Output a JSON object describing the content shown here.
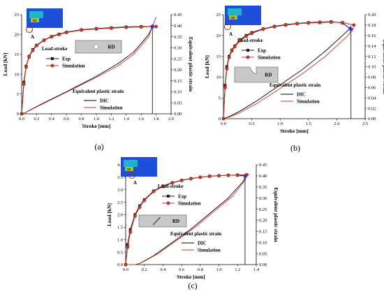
{
  "chart_data": [
    {
      "type": "line",
      "panel_label": "(a)",
      "xlabel": "Stroke [mm]",
      "ylabel": "Load [kN]",
      "y2label": "Equivalent plastic strain",
      "xlim": [
        0.0,
        2.0
      ],
      "ylim": [
        0,
        25
      ],
      "y2lim": [
        0.0,
        0.45
      ],
      "x_ticks": [
        "0.0",
        "0.2",
        "0.4",
        "0.6",
        "0.8",
        "1.0",
        "1.2",
        "1.4",
        "1.6",
        "1.8",
        "2.0"
      ],
      "y_ticks": [
        "0",
        "5",
        "10",
        "15",
        "20",
        "25"
      ],
      "y2_ticks": [
        "0.00",
        "0.05",
        "0.10",
        "0.15",
        "0.20",
        "0.25",
        "0.30",
        "0.35",
        "0.40",
        "0.45"
      ],
      "legend_load_title": "Load-stroke",
      "legend_strain_title": "Equivalent plastic strain",
      "inset_label": "RD",
      "point_label": "A",
      "series": [
        {
          "name": "Exp",
          "axis": "left",
          "x": [
            0.0,
            0.03,
            0.06,
            0.1,
            0.15,
            0.2,
            0.3,
            0.4,
            0.5,
            0.6,
            0.8,
            1.0,
            1.2,
            1.4,
            1.6,
            1.75
          ],
          "y": [
            0,
            8,
            12,
            14.5,
            16.2,
            17.3,
            18.6,
            19.5,
            20.1,
            20.6,
            21.2,
            21.5,
            21.7,
            21.9,
            22.0,
            22.0
          ]
        },
        {
          "name": "Simulation",
          "axis": "left",
          "x": [
            0.0,
            0.03,
            0.06,
            0.1,
            0.15,
            0.2,
            0.3,
            0.4,
            0.5,
            0.6,
            0.8,
            1.0,
            1.2,
            1.4,
            1.6,
            1.8
          ],
          "y": [
            0,
            7.5,
            11.8,
            14.3,
            16.0,
            17.2,
            18.5,
            19.4,
            20.0,
            20.5,
            21.1,
            21.4,
            21.6,
            21.8,
            21.9,
            22.0
          ]
        },
        {
          "name": "DIC",
          "axis": "right",
          "x": [
            0.0,
            0.05,
            0.1,
            0.3,
            0.6,
            1.0,
            1.3,
            1.5,
            1.7,
            1.75
          ],
          "y": [
            0.0,
            0.005,
            0.015,
            0.05,
            0.1,
            0.17,
            0.23,
            0.28,
            0.36,
            0.395
          ]
        },
        {
          "name": "Simulation",
          "axis": "right",
          "x": [
            0.0,
            0.05,
            0.1,
            0.3,
            0.6,
            1.0,
            1.3,
            1.5,
            1.7,
            1.8
          ],
          "y": [
            0.0,
            0.005,
            0.014,
            0.048,
            0.098,
            0.165,
            0.22,
            0.27,
            0.35,
            0.44
          ]
        }
      ]
    },
    {
      "type": "line",
      "panel_label": "(b)",
      "xlabel": "Stroke [mm]",
      "ylabel": "Load [kN]",
      "y2label": "Equivalent plastic strain",
      "xlim": [
        0.0,
        2.5
      ],
      "ylim": [
        0,
        25
      ],
      "y2lim": [
        0.0,
        0.2
      ],
      "x_ticks": [
        "0.0",
        "0.5",
        "1.0",
        "1.5",
        "2.0",
        "2.5"
      ],
      "y_ticks": [
        "0",
        "5",
        "10",
        "15",
        "20",
        "25"
      ],
      "y2_ticks": [
        "0.00",
        "0.02",
        "0.04",
        "0.06",
        "0.08",
        "0.10",
        "0.12",
        "0.14",
        "0.16",
        "0.18",
        "0.20"
      ],
      "legend_load_title": "Load-stroke",
      "legend_strain_title": "Equivalent plastic strain",
      "inset_label": "RD",
      "point_label": "A",
      "series": [
        {
          "name": "Exp",
          "axis": "left",
          "x": [
            0.0,
            0.03,
            0.06,
            0.1,
            0.15,
            0.2,
            0.3,
            0.4,
            0.5,
            0.7,
            0.9,
            1.1,
            1.3,
            1.5,
            1.7,
            1.9,
            2.1,
            2.25
          ],
          "y": [
            0,
            8,
            12.5,
            15,
            16.5,
            17.5,
            19,
            20,
            20.7,
            21.6,
            22.2,
            22.6,
            22.9,
            23.1,
            23.2,
            23.3,
            23.0,
            21.5
          ]
        },
        {
          "name": "Simulation",
          "axis": "left",
          "x": [
            0.0,
            0.03,
            0.06,
            0.1,
            0.15,
            0.2,
            0.3,
            0.4,
            0.5,
            0.7,
            0.9,
            1.1,
            1.3,
            1.5,
            1.7,
            1.9,
            2.1,
            2.3
          ],
          "y": [
            0,
            7.5,
            12,
            14.7,
            16.3,
            17.3,
            18.8,
            19.8,
            20.5,
            21.5,
            22.1,
            22.5,
            22.8,
            23.0,
            23.1,
            23.2,
            23.1,
            22.5
          ]
        },
        {
          "name": "DIC",
          "axis": "right",
          "x": [
            0.0,
            0.1,
            0.3,
            0.6,
            1.0,
            1.4,
            1.8,
            2.0,
            2.2,
            2.25
          ],
          "y": [
            0.0,
            0.004,
            0.015,
            0.035,
            0.065,
            0.095,
            0.13,
            0.15,
            0.17,
            0.178
          ]
        },
        {
          "name": "Simulation",
          "axis": "right",
          "x": [
            0.0,
            0.1,
            0.3,
            0.6,
            1.0,
            1.4,
            1.8,
            2.0,
            2.2,
            2.3
          ],
          "y": [
            0.0,
            0.003,
            0.012,
            0.03,
            0.058,
            0.087,
            0.12,
            0.14,
            0.16,
            0.175
          ]
        }
      ]
    },
    {
      "type": "line",
      "panel_label": "(c)",
      "xlabel": "Stroke [mm]",
      "ylabel": "Load [kN]",
      "y2label": "Equivalent plastic strain",
      "xlim": [
        0.0,
        1.4
      ],
      "ylim": [
        0.0,
        4.0
      ],
      "y2lim": [
        0.0,
        0.45
      ],
      "x_ticks": [
        "0.0",
        "0.2",
        "0.4",
        "0.6",
        "0.8",
        "1.0",
        "1.2",
        "1.4"
      ],
      "y_ticks": [
        "0.0",
        "0.5",
        "1.0",
        "1.5",
        "2.0",
        "2.5",
        "3.0",
        "3.5",
        "4.0"
      ],
      "y2_ticks": [
        "0.00",
        "0.05",
        "0.10",
        "0.15",
        "0.20",
        "0.25",
        "0.30",
        "0.35",
        "0.40",
        "0.45"
      ],
      "legend_load_title": "Load-stroke",
      "legend_strain_title": "Equivalent plastic strain",
      "inset_label": "RD",
      "point_label": "A",
      "series": [
        {
          "name": "Exp",
          "axis": "left",
          "x": [
            0.0,
            0.02,
            0.05,
            0.1,
            0.15,
            0.2,
            0.3,
            0.4,
            0.5,
            0.6,
            0.7,
            0.8,
            0.9,
            1.0,
            1.1,
            1.2,
            1.28
          ],
          "y": [
            0.0,
            0.8,
            1.4,
            2.0,
            2.35,
            2.6,
            2.95,
            3.15,
            3.28,
            3.38,
            3.45,
            3.5,
            3.54,
            3.56,
            3.58,
            3.58,
            3.55
          ]
        },
        {
          "name": "Simulation",
          "axis": "left",
          "x": [
            0.0,
            0.02,
            0.05,
            0.1,
            0.15,
            0.2,
            0.3,
            0.4,
            0.5,
            0.6,
            0.7,
            0.8,
            0.9,
            1.0,
            1.1,
            1.2,
            1.3
          ],
          "y": [
            0.0,
            0.7,
            1.3,
            1.95,
            2.3,
            2.57,
            2.93,
            3.13,
            3.27,
            3.37,
            3.44,
            3.5,
            3.54,
            3.56,
            3.58,
            3.59,
            3.6
          ]
        },
        {
          "name": "DIC",
          "axis": "right",
          "x": [
            0.0,
            0.1,
            0.15,
            0.3,
            0.5,
            0.7,
            0.9,
            1.1,
            1.25,
            1.28
          ],
          "y": [
            0.0,
            0.0,
            0.005,
            0.04,
            0.1,
            0.16,
            0.23,
            0.3,
            0.37,
            0.39
          ]
        },
        {
          "name": "Simulation",
          "axis": "right",
          "x": [
            0.0,
            0.12,
            0.2,
            0.35,
            0.55,
            0.75,
            0.95,
            1.15,
            1.28,
            1.3
          ],
          "y": [
            0.0,
            0.0,
            0.015,
            0.05,
            0.11,
            0.17,
            0.24,
            0.31,
            0.38,
            0.4
          ]
        }
      ]
    }
  ],
  "colors": {
    "exp": "#1a1a1a",
    "simulation": "#c0392b",
    "dic": "#000000",
    "strain_simulation": "#c0392b",
    "star": "#4b2bd6",
    "inset_fill": "#c8c8c8"
  }
}
